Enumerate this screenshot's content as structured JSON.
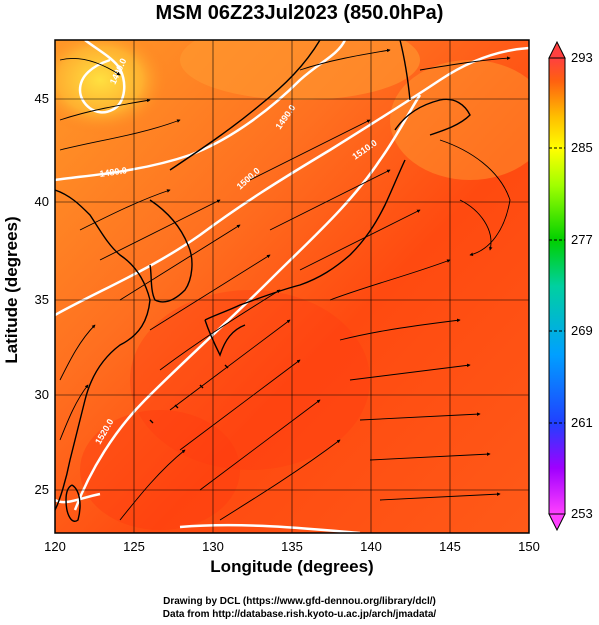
{
  "title": "MSM 06Z23Jul2023 (850.0hPa)",
  "x_axis": {
    "label": "Longitude (degrees)",
    "range": [
      120,
      150
    ],
    "ticks": [
      "120",
      "125",
      "130",
      "135",
      "140",
      "145",
      "150"
    ]
  },
  "y_axis": {
    "label": "Latitude  (degrees)",
    "range": [
      22.5,
      47.5
    ],
    "ticks": [
      "25",
      "30",
      "35",
      "40",
      "45"
    ]
  },
  "colorbar": {
    "range": [
      253,
      293
    ],
    "labels": [
      "293",
      "285",
      "277",
      "269",
      "261",
      "253"
    ],
    "colors": [
      "#ff40ff",
      "#c000ff",
      "#2040ff",
      "#00a0ff",
      "#00e0c0",
      "#00d000",
      "#a0ff00",
      "#ffff00",
      "#ffc000",
      "#ff8000",
      "#ff2000",
      "#ff4040"
    ]
  },
  "contour_labels": [
    "1490.0",
    "1480.0",
    "1500.0",
    "1520.0",
    "1510.0",
    "1530.0"
  ],
  "credits": [
    "Drawing by DCL (https://www.gfd-dennou.org/library/dcl/)",
    "Data from http://database.rish.kyoto-u.ac.jp/arch/jmadata/"
  ],
  "colors": {
    "field_warm": "#ff5010",
    "field_mid": "#ff8020",
    "field_cool": "#ffc030",
    "contour": "#ffffff",
    "coast": "#000000"
  }
}
